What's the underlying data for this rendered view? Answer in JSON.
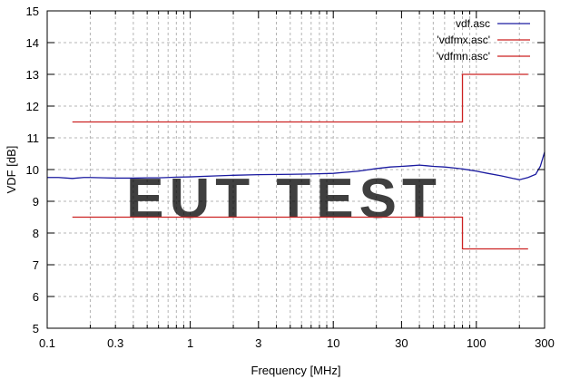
{
  "chart_data": {
    "type": "line",
    "xlabel": "Frequency [MHz]",
    "ylabel": "VDF [dB]",
    "x_scale": "log",
    "xlim": [
      0.1,
      300
    ],
    "ylim": [
      5,
      15
    ],
    "grid": true,
    "legend_position": "top-right",
    "x_ticks": [
      0.1,
      0.3,
      1,
      3,
      10,
      30,
      100,
      300
    ],
    "x_tick_labels": [
      "0.1",
      "0.3",
      "1",
      "3",
      "10",
      "30",
      "100",
      "300"
    ],
    "y_ticks": [
      5,
      6,
      7,
      8,
      9,
      10,
      11,
      12,
      13,
      14,
      15
    ],
    "y_tick_labels": [
      "5",
      "6",
      "7",
      "8",
      "9",
      "10",
      "11",
      "12",
      "13",
      "14",
      "15"
    ],
    "series": [
      {
        "name": "vdf.asc",
        "color": "#1a1aa0",
        "x": [
          0.1,
          0.12,
          0.15,
          0.18,
          0.2,
          0.25,
          0.3,
          0.4,
          0.5,
          0.6,
          0.7,
          0.8,
          1,
          1.5,
          2,
          3,
          5,
          7,
          10,
          15,
          20,
          25,
          30,
          35,
          40,
          45,
          50,
          60,
          70,
          80,
          100,
          120,
          150,
          180,
          200,
          230,
          260,
          280,
          300
        ],
        "values": [
          9.75,
          9.75,
          9.72,
          9.75,
          9.75,
          9.74,
          9.73,
          9.73,
          9.74,
          9.74,
          9.75,
          9.76,
          9.77,
          9.8,
          9.82,
          9.84,
          9.85,
          9.86,
          9.88,
          9.95,
          10.03,
          10.08,
          10.1,
          10.12,
          10.14,
          10.12,
          10.1,
          10.08,
          10.05,
          10.02,
          9.95,
          9.88,
          9.8,
          9.72,
          9.68,
          9.75,
          9.85,
          10.1,
          10.55
        ]
      },
      {
        "name": "'vdfmx.asc'",
        "color": "#cc2222",
        "x": [
          0.15,
          80,
          80,
          230
        ],
        "values": [
          11.5,
          11.5,
          13,
          13
        ]
      },
      {
        "name": "'vdfmn.asc'",
        "color": "#cc2222",
        "x": [
          0.15,
          80,
          80,
          230
        ],
        "values": [
          8.5,
          8.5,
          7.5,
          7.5
        ]
      }
    ]
  },
  "watermark": {
    "text": "EUT TEST",
    "color": "#9dc3e6"
  }
}
